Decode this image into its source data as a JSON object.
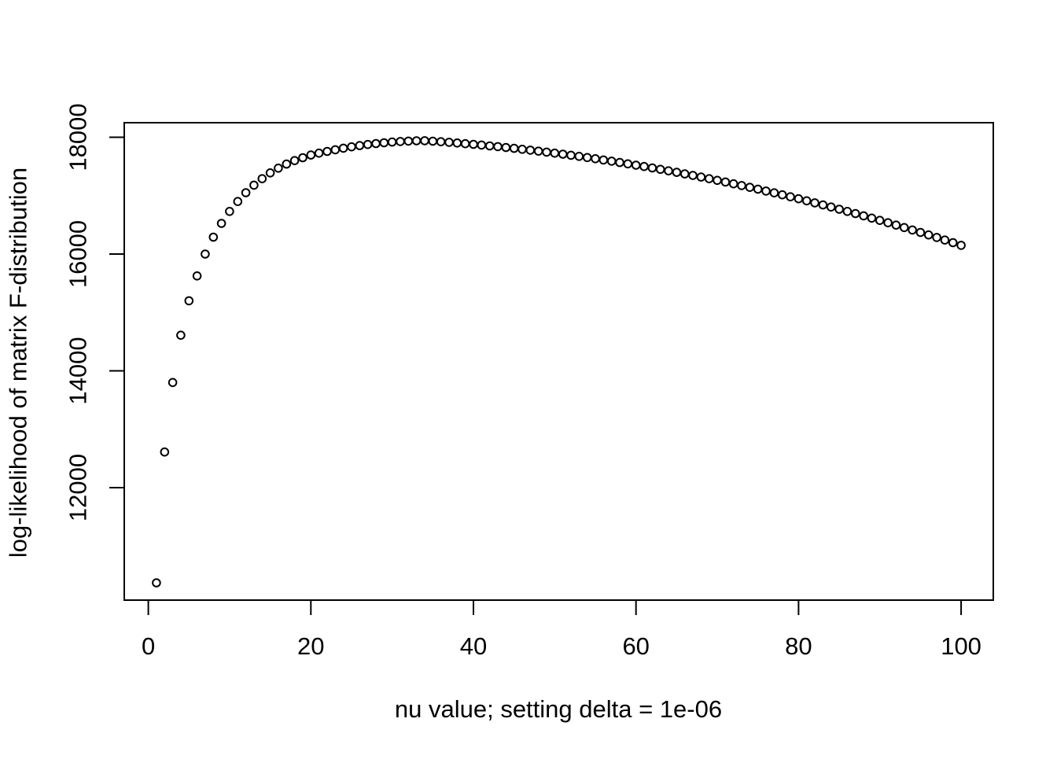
{
  "figure": {
    "background": "#ffffff",
    "foreground": "#000000"
  },
  "chart_data": {
    "type": "scatter",
    "title": "",
    "xlabel": "nu value; setting delta = 1e-06",
    "ylabel": "log-likelihood of matrix F-distribution",
    "point_style": "open-circle",
    "point_color": "#000000",
    "grid": false,
    "legend": null,
    "xlim": [
      -2.96,
      103.96
    ],
    "ylim": [
      10074,
      18249
    ],
    "x_ticks": [
      0,
      20,
      40,
      60,
      80,
      100
    ],
    "y_ticks": [
      12000,
      14000,
      16000,
      18000
    ],
    "x_tick_labels": [
      "0",
      "20",
      "40",
      "60",
      "80",
      "100"
    ],
    "y_tick_labels": [
      "12000",
      "14000",
      "16000",
      "18000"
    ],
    "x": [
      1,
      2,
      3,
      4,
      5,
      6,
      7,
      8,
      9,
      10,
      11,
      12,
      13,
      14,
      15,
      16,
      17,
      18,
      19,
      20,
      21,
      22,
      23,
      24,
      25,
      26,
      27,
      28,
      29,
      30,
      31,
      32,
      33,
      34,
      35,
      36,
      37,
      38,
      39,
      40,
      41,
      42,
      43,
      44,
      45,
      46,
      47,
      48,
      49,
      50,
      51,
      52,
      53,
      54,
      55,
      56,
      57,
      58,
      59,
      60,
      61,
      62,
      63,
      64,
      65,
      66,
      67,
      68,
      69,
      70,
      71,
      72,
      73,
      74,
      75,
      76,
      77,
      78,
      79,
      80,
      81,
      82,
      83,
      84,
      85,
      86,
      87,
      88,
      89,
      90,
      91,
      92,
      93,
      94,
      95,
      96,
      97,
      98,
      99,
      100
    ],
    "y": [
      10370,
      12610,
      13800,
      14610,
      15200,
      15625,
      16000,
      16290,
      16525,
      16730,
      16900,
      17050,
      17180,
      17290,
      17390,
      17470,
      17540,
      17600,
      17650,
      17695,
      17728,
      17758,
      17786,
      17812,
      17836,
      17857,
      17876,
      17892,
      17906,
      17918,
      17927,
      17934,
      17939,
      17941,
      17933,
      17923,
      17913,
      17902,
      17890,
      17878,
      17866,
      17852,
      17839,
      17825,
      17810,
      17794,
      17779,
      17762,
      17745,
      17728,
      17710,
      17691,
      17672,
      17652,
      17632,
      17611,
      17590,
      17568,
      17545,
      17522,
      17499,
      17474,
      17450,
      17425,
      17399,
      17372,
      17346,
      17318,
      17290,
      17262,
      17233,
      17203,
      17173,
      17142,
      17111,
      17079,
      17047,
      17014,
      16980,
      16946,
      16912,
      16876,
      16841,
      16805,
      16768,
      16730,
      16693,
      16654,
      16615,
      16576,
      16536,
      16495,
      16454,
      16412,
      16370,
      16327,
      16284,
      16240,
      16195,
      16150
    ]
  }
}
